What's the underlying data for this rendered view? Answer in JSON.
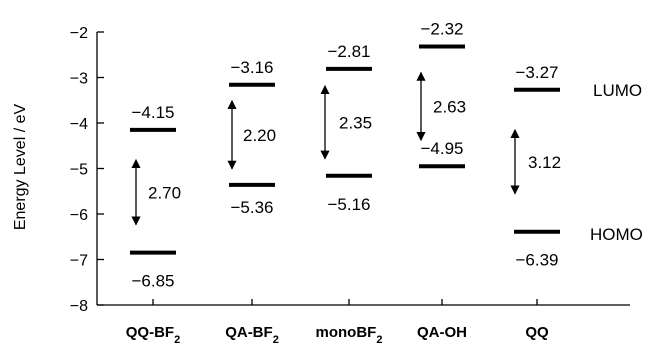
{
  "chart_data": {
    "type": "energy-level-diagram",
    "title": "",
    "ylabel": "Energy Level / eV",
    "xlabel": "",
    "ylim": [
      -8,
      -2
    ],
    "yticks": [
      "−2",
      "−3",
      "−4",
      "−5",
      "−6",
      "−7",
      "−8"
    ],
    "ytick_values": [
      -2,
      -3,
      -4,
      -5,
      -6,
      -7,
      -8
    ],
    "series_labels": {
      "lumo": "LUMO",
      "homo": "HOMO"
    },
    "categories": [
      {
        "name": "QQ-BF",
        "sub": "2",
        "lumo": -4.15,
        "homo": -6.85,
        "lumo_label": "−4.15",
        "homo_label": "−6.85",
        "gap": "2.70"
      },
      {
        "name": "QA-BF",
        "sub": "2",
        "lumo": -3.16,
        "homo": -5.36,
        "lumo_label": "−3.16",
        "homo_label": "−5.36",
        "gap": "2.20"
      },
      {
        "name": "monoBF",
        "sub": "2",
        "lumo": -2.81,
        "homo": -5.16,
        "lumo_label": "−2.81",
        "homo_label": "−5.16",
        "gap": "2.35"
      },
      {
        "name": "QA-OH",
        "sub": "",
        "lumo": -2.32,
        "homo": -4.95,
        "lumo_label": "−2.32",
        "homo_label": "−4.95",
        "gap": "2.63"
      },
      {
        "name": "QQ",
        "sub": "",
        "lumo": -3.27,
        "homo": -6.39,
        "lumo_label": "−3.27",
        "homo_label": "−6.39",
        "gap": "3.12"
      }
    ]
  }
}
